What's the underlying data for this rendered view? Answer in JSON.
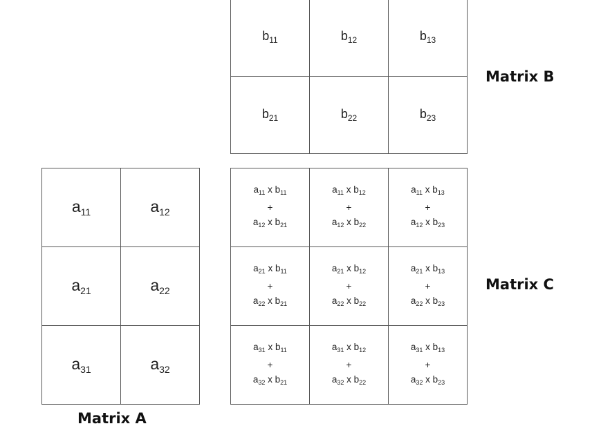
{
  "matrix_a": {
    "label": "Matrix A",
    "cells": [
      {
        "v": "a",
        "s": "11"
      },
      {
        "v": "a",
        "s": "12"
      },
      {
        "v": "a",
        "s": "21"
      },
      {
        "v": "a",
        "s": "22"
      },
      {
        "v": "a",
        "s": "31"
      },
      {
        "v": "a",
        "s": "32"
      }
    ]
  },
  "matrix_b": {
    "label": "Matrix B",
    "cells": [
      {
        "v": "b",
        "s": "11"
      },
      {
        "v": "b",
        "s": "12"
      },
      {
        "v": "b",
        "s": "13"
      },
      {
        "v": "b",
        "s": "21"
      },
      {
        "v": "b",
        "s": "22"
      },
      {
        "v": "b",
        "s": "23"
      }
    ]
  },
  "matrix_c": {
    "label": "Matrix C",
    "times": "x",
    "plus": "+",
    "cells": [
      {
        "t1": [
          "a",
          "11",
          "b",
          "11"
        ],
        "t2": [
          "a",
          "12",
          "b",
          "21"
        ]
      },
      {
        "t1": [
          "a",
          "11",
          "b",
          "12"
        ],
        "t2": [
          "a",
          "12",
          "b",
          "22"
        ]
      },
      {
        "t1": [
          "a",
          "11",
          "b",
          "13"
        ],
        "t2": [
          "a",
          "12",
          "b",
          "23"
        ]
      },
      {
        "t1": [
          "a",
          "21",
          "b",
          "11"
        ],
        "t2": [
          "a",
          "22",
          "b",
          "21"
        ]
      },
      {
        "t1": [
          "a",
          "21",
          "b",
          "12"
        ],
        "t2": [
          "a",
          "22",
          "b",
          "22"
        ]
      },
      {
        "t1": [
          "a",
          "21",
          "b",
          "13"
        ],
        "t2": [
          "a",
          "22",
          "b",
          "23"
        ]
      },
      {
        "t1": [
          "a",
          "31",
          "b",
          "11"
        ],
        "t2": [
          "a",
          "32",
          "b",
          "21"
        ]
      },
      {
        "t1": [
          "a",
          "31",
          "b",
          "12"
        ],
        "t2": [
          "a",
          "32",
          "b",
          "22"
        ]
      },
      {
        "t1": [
          "a",
          "31",
          "b",
          "13"
        ],
        "t2": [
          "a",
          "32",
          "b",
          "23"
        ]
      }
    ]
  }
}
